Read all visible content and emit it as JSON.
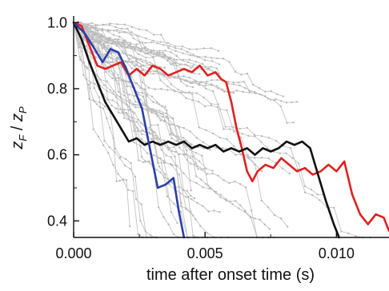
{
  "chart_data": {
    "type": "line",
    "xlabel": "time after onset time (s)",
    "ylabel_main": "z",
    "ylabel_sub1": "F",
    "ylabel_sep": " / ",
    "ylabel_sub2": "P",
    "xlim": [
      0.0,
      0.012
    ],
    "ylim": [
      0.35,
      1.02
    ],
    "x_ticks": [
      0.0,
      0.005,
      0.01
    ],
    "x_tick_labels": [
      "0.000",
      "0.005",
      "0.010"
    ],
    "y_ticks": [
      0.4,
      0.6,
      0.8,
      1.0
    ],
    "y_tick_labels": [
      "0.4",
      "0.6",
      "0.8",
      "1.0"
    ],
    "grid": false,
    "series": [
      {
        "color": "#e02020",
        "x": [
          0.0,
          0.0003,
          0.0006,
          0.0009,
          0.0012,
          0.0015,
          0.0018,
          0.0021,
          0.0024,
          0.0027,
          0.003,
          0.0033,
          0.0036,
          0.0039,
          0.0042,
          0.0045,
          0.0048,
          0.0051,
          0.0054,
          0.0056,
          0.0058,
          0.006,
          0.0062,
          0.0064,
          0.0066,
          0.0068,
          0.007,
          0.0073,
          0.0076,
          0.0079,
          0.0082,
          0.0085,
          0.0088,
          0.0091,
          0.0094,
          0.0097,
          0.01,
          0.0103,
          0.0106,
          0.0109,
          0.0112,
          0.0115,
          0.0118,
          0.012
        ],
        "values": [
          1.0,
          0.99,
          0.93,
          0.87,
          0.86,
          0.87,
          0.88,
          0.84,
          0.86,
          0.84,
          0.87,
          0.86,
          0.84,
          0.85,
          0.86,
          0.85,
          0.87,
          0.84,
          0.85,
          0.83,
          0.82,
          0.76,
          0.68,
          0.62,
          0.55,
          0.52,
          0.55,
          0.57,
          0.56,
          0.59,
          0.57,
          0.55,
          0.56,
          0.54,
          0.55,
          0.57,
          0.55,
          0.58,
          0.48,
          0.42,
          0.39,
          0.42,
          0.41,
          0.37
        ]
      },
      {
        "color": "#111111",
        "x": [
          0.0,
          0.0003,
          0.0006,
          0.0009,
          0.0012,
          0.0015,
          0.0018,
          0.0021,
          0.0024,
          0.0027,
          0.003,
          0.0033,
          0.0036,
          0.0039,
          0.0042,
          0.0045,
          0.0048,
          0.0051,
          0.0054,
          0.0057,
          0.006,
          0.0063,
          0.0066,
          0.0069,
          0.0072,
          0.0075,
          0.0078,
          0.0081,
          0.0084,
          0.0087,
          0.009,
          0.0093,
          0.0096,
          0.0099,
          0.0101
        ],
        "values": [
          1.0,
          0.95,
          0.88,
          0.82,
          0.76,
          0.72,
          0.68,
          0.64,
          0.65,
          0.63,
          0.64,
          0.63,
          0.64,
          0.63,
          0.64,
          0.62,
          0.63,
          0.62,
          0.63,
          0.61,
          0.62,
          0.61,
          0.62,
          0.6,
          0.62,
          0.61,
          0.62,
          0.64,
          0.63,
          0.64,
          0.62,
          0.54,
          0.46,
          0.39,
          0.35
        ]
      },
      {
        "color": "#2a3fa8",
        "x": [
          0.0,
          0.0004,
          0.0008,
          0.0011,
          0.0014,
          0.0017,
          0.002,
          0.0023,
          0.0026,
          0.0029,
          0.0032,
          0.0035,
          0.0038,
          0.004,
          0.0042
        ],
        "values": [
          1.0,
          0.97,
          0.92,
          0.88,
          0.92,
          0.91,
          0.86,
          0.8,
          0.74,
          0.62,
          0.5,
          0.51,
          0.53,
          0.43,
          0.35
        ]
      }
    ]
  }
}
